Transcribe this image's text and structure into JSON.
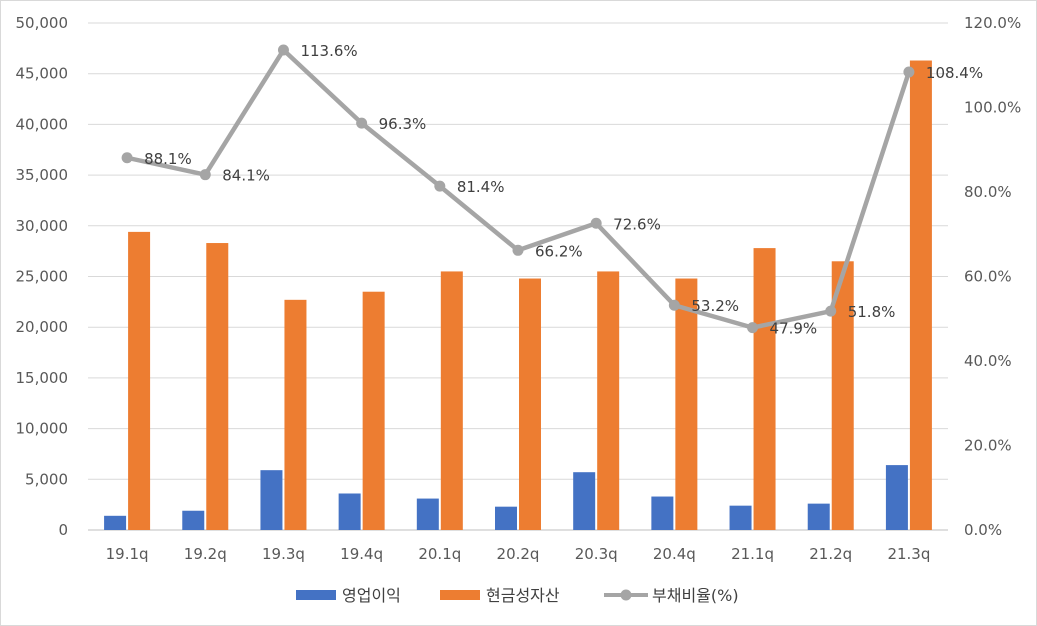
{
  "chart_data": {
    "type": "bar",
    "categories": [
      "19.1q",
      "19.2q",
      "19.3q",
      "19.4q",
      "20.1q",
      "20.2q",
      "20.3q",
      "20.4q",
      "21.1q",
      "21.2q",
      "21.3q"
    ],
    "series": [
      {
        "name": "영업이익",
        "type": "bar",
        "axis": "left",
        "color": "#4472C4",
        "values": [
          1400,
          1900,
          5900,
          3600,
          3100,
          2300,
          5700,
          3300,
          2400,
          2600,
          6400
        ]
      },
      {
        "name": "현금성자산",
        "type": "bar",
        "axis": "left",
        "color": "#ED7D31",
        "values": [
          29400,
          28300,
          22700,
          23500,
          25500,
          24800,
          25500,
          24800,
          27800,
          26500,
          46300
        ]
      },
      {
        "name": "부채비율(%)",
        "type": "line",
        "axis": "right",
        "color": "#A5A5A5",
        "values": [
          88.1,
          84.1,
          113.6,
          96.3,
          81.4,
          66.2,
          72.6,
          53.2,
          47.9,
          51.8,
          108.4
        ],
        "labels": [
          "88.1%",
          "84.1%",
          "113.6%",
          "96.3%",
          "81.4%",
          "66.2%",
          "72.6%",
          "53.2%",
          "47.9%",
          "51.8%",
          "108.4%"
        ]
      }
    ],
    "left_axis": {
      "ylim": [
        0,
        50000
      ],
      "ticks": [
        "0",
        "5,000",
        "10,000",
        "15,000",
        "20,000",
        "25,000",
        "30,000",
        "35,000",
        "40,000",
        "45,000",
        "50,000"
      ]
    },
    "right_axis": {
      "ylim": [
        0,
        120
      ],
      "ticks": [
        "0.0%",
        "20.0%",
        "40.0%",
        "60.0%",
        "80.0%",
        "100.0%",
        "120.0%"
      ]
    },
    "grid": true,
    "legend": "bottom",
    "title": "",
    "xlabel": "",
    "ylabel": ""
  }
}
